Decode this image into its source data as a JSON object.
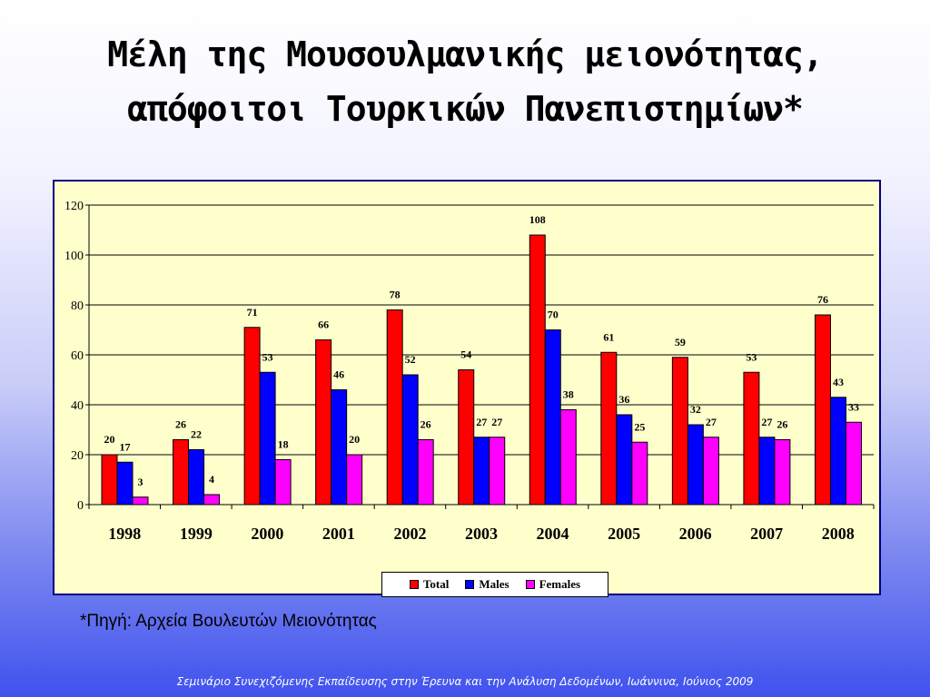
{
  "title": {
    "line1": "Μέλη της Μουσουλμανικής μειονότητας,",
    "line2": "απόφοιτοι Τουρκικών Πανεπιστημίων*"
  },
  "source_note": "*Πηγή:  Αρχεία Βουλευτών Μειονότητας",
  "footer": "Σεμινάριο Συνεχιζόμενης Εκπαίδευσης στην Έρευνα και την Ανάλυση Δεδομένων, Ιωάννινα, Ιούνιος 2009",
  "colors": {
    "total": "#ff0000",
    "males": "#0000ff",
    "females": "#ff00ff",
    "plot_background": "#ffffcc",
    "frame_border": "#000080"
  },
  "chart_data": {
    "type": "bar",
    "categories": [
      "1998",
      "1999",
      "2000",
      "2001",
      "2002",
      "2003",
      "2004",
      "2005",
      "2006",
      "2007",
      "2008"
    ],
    "series": [
      {
        "name": "Total",
        "values": [
          20,
          26,
          71,
          66,
          78,
          54,
          108,
          61,
          59,
          53,
          76
        ]
      },
      {
        "name": "Males",
        "values": [
          17,
          22,
          53,
          46,
          52,
          27,
          70,
          36,
          32,
          27,
          43
        ]
      },
      {
        "name": "Females",
        "values": [
          3,
          4,
          18,
          20,
          26,
          27,
          38,
          25,
          27,
          26,
          33
        ]
      }
    ],
    "ylim": [
      0,
      120
    ],
    "yticks": [
      0,
      20,
      40,
      60,
      80,
      100,
      120
    ],
    "grid": true,
    "legend_position": "bottom-center",
    "data_labels": true
  }
}
